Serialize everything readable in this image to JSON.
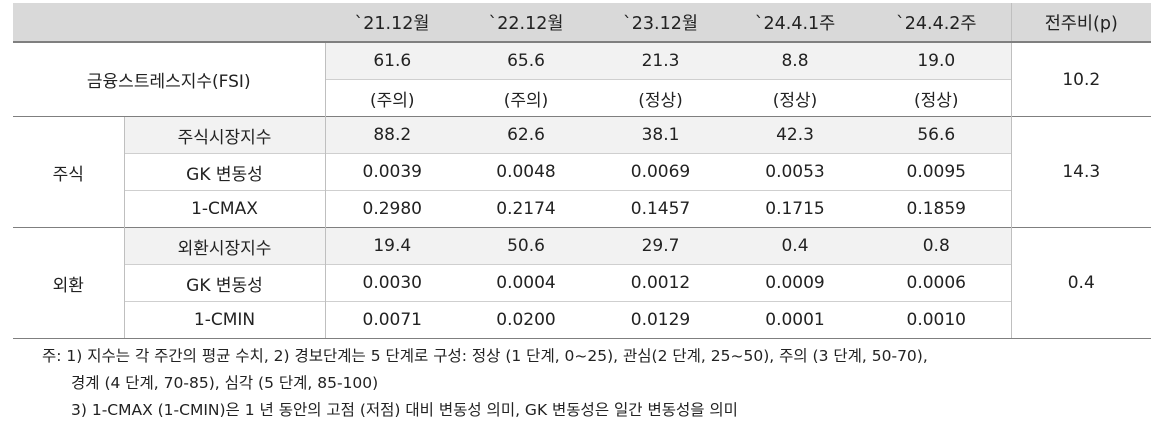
{
  "header": {
    "cols": [
      "`21.12월",
      "`22.12월",
      "`23.12월",
      "`24.4.1주",
      "`24.4.2주",
      "전주비(p)"
    ]
  },
  "fsi": {
    "label": "금융스트레스지수(FSI)",
    "values": [
      "61.6",
      "65.6",
      "21.3",
      "8.8",
      "19.0"
    ],
    "status": [
      "(주의)",
      "(주의)",
      "(정상)",
      "(정상)",
      "(정상)"
    ],
    "change": "10.2"
  },
  "stock": {
    "group": "주식",
    "change": "14.3",
    "rows": [
      {
        "label": "주식시장지수",
        "values": [
          "88.2",
          "62.6",
          "38.1",
          "42.3",
          "56.6"
        ]
      },
      {
        "label": "GK 변동성",
        "values": [
          "0.0039",
          "0.0048",
          "0.0069",
          "0.0053",
          "0.0095"
        ]
      },
      {
        "label": "1-CMAX",
        "values": [
          "0.2980",
          "0.2174",
          "0.1457",
          "0.1715",
          "0.1859"
        ]
      }
    ]
  },
  "fx": {
    "group": "외환",
    "change": "0.4",
    "rows": [
      {
        "label": "외환시장지수",
        "values": [
          "19.4",
          "50.6",
          "29.7",
          "0.4",
          "0.8"
        ]
      },
      {
        "label": "GK 변동성",
        "values": [
          "0.0030",
          "0.0004",
          "0.0012",
          "0.0009",
          "0.0006"
        ]
      },
      {
        "label": "1-CMIN",
        "values": [
          "0.0071",
          "0.0200",
          "0.0129",
          "0.0001",
          "0.0010"
        ]
      }
    ]
  },
  "notes": {
    "line1": "주: 1) 지수는 각 주간의 평균 수치, 2) 경보단계는 5 단계로 구성: 정상 (1 단계, 0~25), 관심(2 단계, 25~50), 주의 (3 단계, 50-70),",
    "line2": "경계 (4 단계, 70-85), 심각 (5 단계, 85-100)",
    "line3": "3) 1-CMAX (1-CMIN)은 1 년 동안의 고점 (저점) 대비 변동성 의미, GK 변동성은 일간 변동성을 의미"
  }
}
